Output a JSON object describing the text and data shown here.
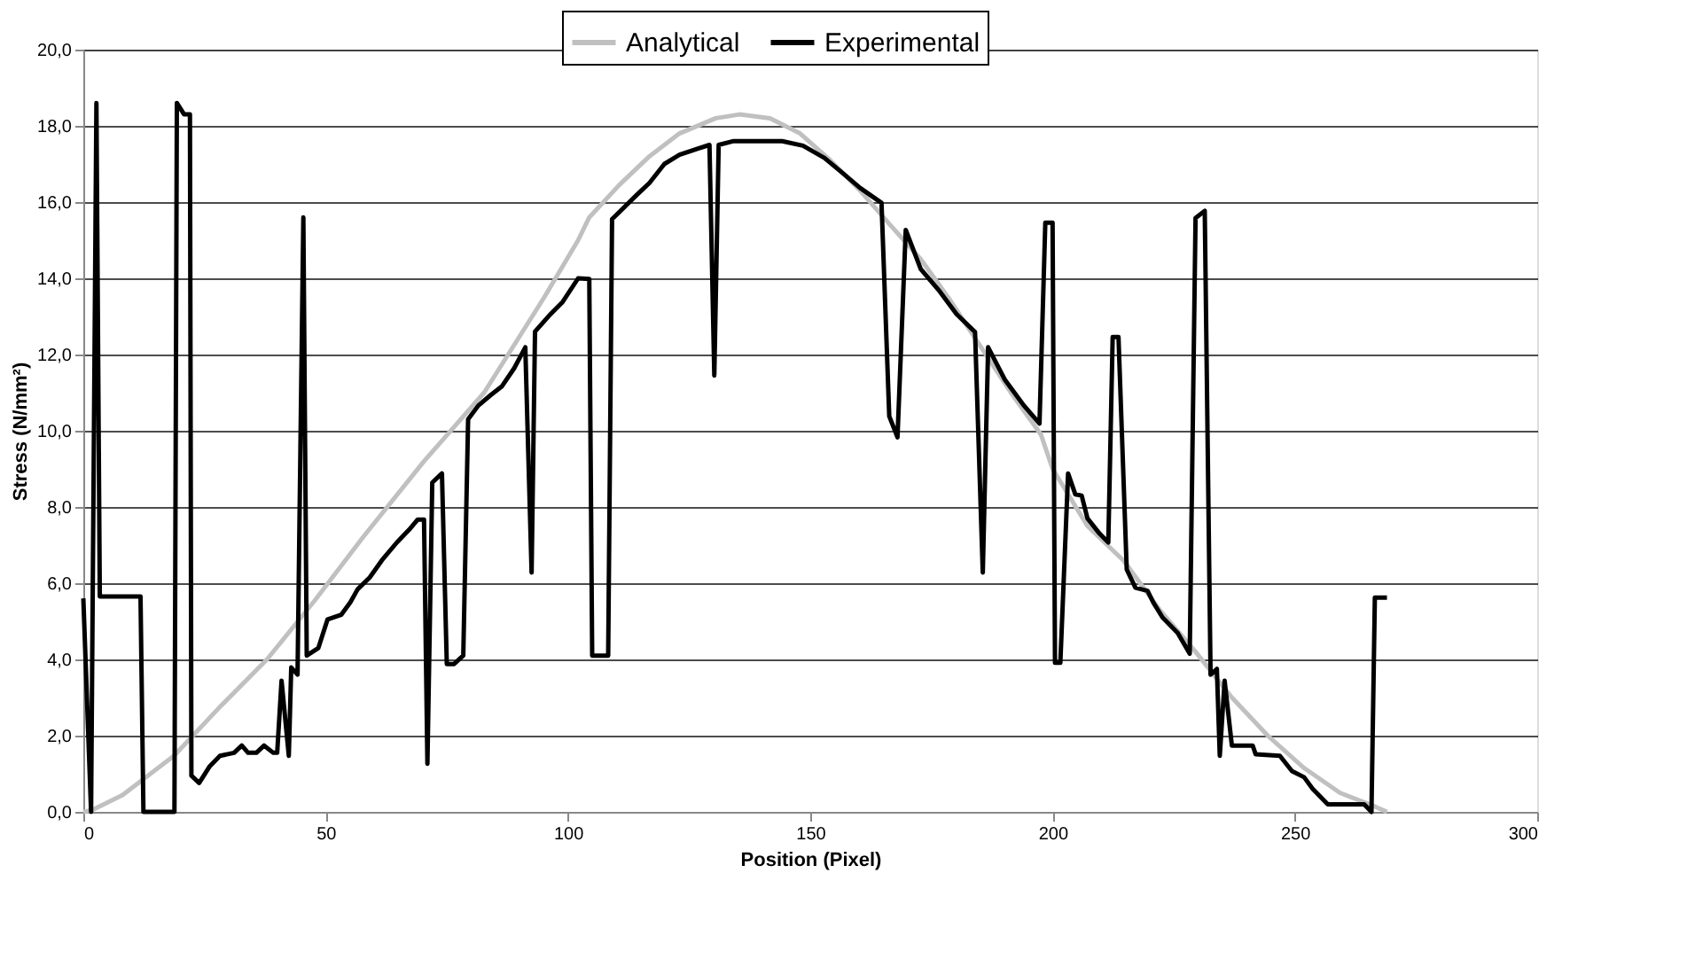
{
  "chart_data": {
    "type": "line",
    "xlabel": "Position (Pixel)",
    "ylabel": "Stress (N/mm²)",
    "xlim": [
      0,
      300
    ],
    "xticks": [
      0,
      50,
      100,
      150,
      200,
      250,
      300
    ],
    "ylim": [
      0,
      20
    ],
    "yticks": [
      {
        "value": 0,
        "label": "0,0"
      },
      {
        "value": 2,
        "label": "2,0"
      },
      {
        "value": 4,
        "label": "4,0"
      },
      {
        "value": 6,
        "label": "6,0"
      },
      {
        "value": 8,
        "label": "8,0"
      },
      {
        "value": 10,
        "label": "10,0"
      },
      {
        "value": 12,
        "label": "12,0"
      },
      {
        "value": 14,
        "label": "14,0"
      },
      {
        "value": 16,
        "label": "16,0"
      },
      {
        "value": 18,
        "label": "18,0"
      },
      {
        "value": 20,
        "label": "20,0"
      }
    ],
    "grid": "y",
    "legend": "top",
    "marker": "none",
    "line_style": "solid",
    "series": [
      {
        "name": "Analytical",
        "color": "#c0c0c0",
        "x": [
          0,
          1.9,
          8.1,
          18.7,
          28,
          37.9,
          47.9,
          57.8,
          70.3,
          82.7,
          95.1,
          102.1,
          104.4,
          110.6,
          116.8,
          123,
          130.5,
          135.4,
          141.7,
          147.9,
          154.1,
          160.3,
          166.5,
          172.8,
          179,
          185.2,
          191.4,
          197.6,
          200,
          207.2,
          214.6,
          222.1,
          229.5,
          237,
          244.4,
          251.9,
          259.3,
          266.7,
          269
        ],
        "values": [
          0,
          0.05,
          0.44,
          1.47,
          2.73,
          4.0,
          5.57,
          7.22,
          9.2,
          11.0,
          13.5,
          15.0,
          15.6,
          16.45,
          17.2,
          17.8,
          18.2,
          18.3,
          18.2,
          17.8,
          17.1,
          16.3,
          15.4,
          14.5,
          13.4,
          12.2,
          11.0,
          9.9,
          9.0,
          7.5,
          6.6,
          5.3,
          4.2,
          3.0,
          2.0,
          1.15,
          0.5,
          0.13,
          0
        ]
      },
      {
        "name": "Experimental",
        "color": "#000000",
        "x": [
          0,
          1.6,
          2.7,
          3.4,
          11.8,
          12.4,
          18.8,
          19.3,
          20.8,
          22,
          22.3,
          23.9,
          26.1,
          28.2,
          31.1,
          32.7,
          34,
          35.7,
          37.3,
          39.2,
          40,
          40.9,
          42.4,
          42.9,
          44.2,
          45.4,
          46.1,
          48.5,
          50.4,
          53.2,
          55.1,
          56.6,
          59.1,
          61.6,
          64.7,
          67.2,
          69,
          70.3,
          71,
          72,
          74,
          75,
          76.5,
          78.4,
          79.4,
          81.5,
          84,
          86.4,
          88.9,
          91.2,
          92.5,
          93.2,
          96.4,
          98.9,
          102.1,
          104.4,
          105,
          108.3,
          109.1,
          110.6,
          114.3,
          116.8,
          119.9,
          123,
          126.7,
          129.2,
          130.2,
          131.1,
          134.2,
          144.2,
          148.5,
          152.9,
          156.6,
          160.3,
          164.7,
          166.3,
          168,
          169.7,
          172.8,
          176.5,
          180.2,
          184,
          185.6,
          186.7,
          190.2,
          193.9,
          197.3,
          198.5,
          200,
          200.5,
          201.6,
          203.2,
          204.7,
          206,
          207.2,
          209.7,
          211.5,
          212.4,
          213.6,
          215.3,
          217.1,
          219.6,
          220.8,
          222.7,
          225.8,
          228.3,
          229.5,
          231.4,
          232.6,
          233.9,
          234.5,
          235.5,
          237,
          241.3,
          241.9,
          246.9,
          249.4,
          251.9,
          253.7,
          256.8,
          264.3,
          265.8,
          266.5,
          269
        ],
        "values": [
          5.6,
          0,
          18.6,
          5.65,
          5.65,
          0,
          0,
          18.6,
          18.3,
          18.3,
          0.95,
          0.76,
          1.2,
          1.47,
          1.55,
          1.74,
          1.55,
          1.55,
          1.74,
          1.55,
          1.55,
          3.44,
          1.47,
          3.79,
          3.6,
          15.6,
          4.1,
          4.3,
          5.05,
          5.17,
          5.5,
          5.84,
          6.15,
          6.6,
          7.07,
          7.4,
          7.67,
          7.67,
          1.26,
          8.64,
          8.88,
          3.88,
          3.88,
          4.1,
          10.3,
          10.66,
          10.93,
          11.17,
          11.64,
          12.19,
          6.28,
          12.6,
          13.06,
          13.38,
          14.0,
          13.98,
          4.1,
          4.1,
          15.55,
          15.74,
          16.2,
          16.5,
          17.0,
          17.24,
          17.4,
          17.5,
          11.45,
          17.5,
          17.6,
          17.6,
          17.48,
          17.16,
          16.77,
          16.37,
          15.98,
          10.38,
          9.83,
          15.27,
          14.24,
          13.69,
          13.06,
          12.59,
          6.28,
          12.19,
          11.33,
          10.69,
          10.19,
          15.46,
          15.46,
          3.91,
          3.91,
          8.88,
          8.33,
          8.3,
          7.7,
          7.3,
          7.07,
          12.46,
          12.46,
          6.36,
          5.88,
          5.8,
          5.49,
          5.1,
          4.7,
          4.15,
          15.58,
          15.77,
          3.6,
          3.75,
          1.47,
          3.44,
          1.74,
          1.74,
          1.51,
          1.47,
          1.07,
          0.91,
          0.6,
          0.2,
          0.2,
          0,
          5.62,
          5.62
        ]
      }
    ]
  }
}
